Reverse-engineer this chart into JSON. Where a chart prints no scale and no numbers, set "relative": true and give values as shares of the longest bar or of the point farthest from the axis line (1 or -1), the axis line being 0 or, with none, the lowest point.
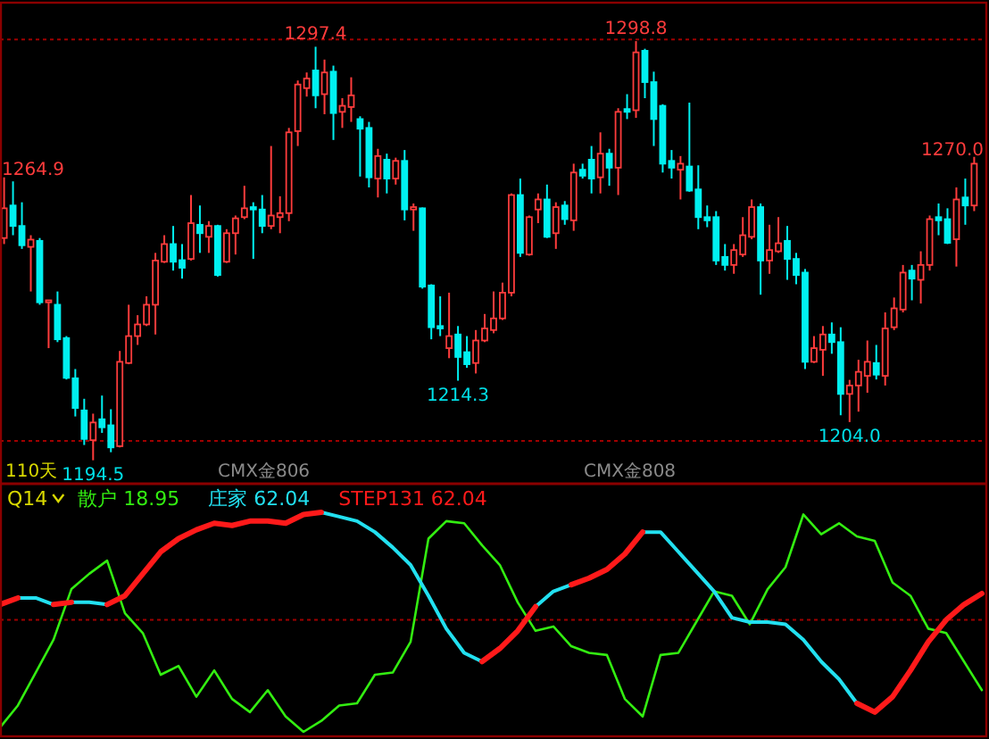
{
  "chart_data": [
    {
      "type": "candlestick",
      "categories": [
        null,
        null,
        null,
        null,
        null,
        null,
        null,
        null,
        null,
        null,
        null,
        null,
        null,
        null,
        null,
        null,
        null,
        null,
        null,
        null,
        null,
        null,
        null,
        null,
        null,
        null,
        null,
        null,
        null,
        null,
        null,
        null,
        null,
        null,
        null,
        null,
        null,
        null,
        null,
        null,
        null,
        null,
        null,
        null,
        null,
        null,
        null,
        null,
        null,
        null,
        null,
        null,
        null,
        null,
        null,
        null,
        null,
        null,
        null,
        null,
        null,
        null,
        null,
        null,
        null,
        null,
        null,
        null,
        null,
        null,
        null,
        null,
        null,
        null,
        null,
        null,
        null,
        null,
        null,
        null,
        null,
        null,
        null,
        null,
        null,
        null,
        null,
        null,
        null,
        null,
        null,
        null,
        null,
        null,
        null,
        null,
        null,
        null,
        null,
        null,
        null,
        null,
        null,
        null,
        null,
        null,
        null,
        null,
        null,
        null
      ],
      "colors": [
        "#ff3c3c",
        "#00f0f0",
        "#00f0f0",
        "#ff3c3c",
        "#00f0f0",
        "#ff3c3c",
        "#00f0f0",
        "#00f0f0",
        "#00f0f0",
        "#00f0f0",
        "#ff3c3c",
        "#00f0f0",
        "#00f0f0",
        "#ff3c3c",
        "#ff3c3c",
        "#ff3c3c",
        "#ff3c3c",
        "#ff3c3c",
        "#ff3c3c",
        "#00f0f0",
        "#00f0f0",
        "#ff3c3c",
        "#00f0f0",
        "#ff3c3c",
        "#00f0f0",
        "#ff3c3c",
        "#ff3c3c",
        "#ff3c3c",
        "#00f0f0",
        "#00f0f0",
        "#ff3c3c",
        "#ff3c3c",
        "#ff3c3c",
        "#ff3c3c",
        "#ff3c3c",
        "#00f0f0",
        "#ff3c3c",
        "#00f0f0",
        "#ff3c3c",
        "#ff3c3c",
        "#00f0f0",
        "#00f0f0",
        "#ff3c3c",
        "#00f0f0",
        "#ff3c3c",
        "#00f0f0",
        "#ff3c3c",
        "#00f0f0",
        "#00f0f0",
        "#00f0f0",
        "#ff3c3c",
        "#00f0f0",
        "#00f0f0",
        "#ff3c3c",
        "#ff3c3c",
        "#ff3c3c",
        "#ff3c3c",
        "#ff3c3c",
        "#00f0f0",
        "#ff3c3c",
        "#ff3c3c",
        "#00f0f0",
        "#ff3c3c",
        "#00f0f0",
        "#ff3c3c",
        "#00f0f0",
        "#00f0f0",
        "#ff3c3c",
        "#00f0f0",
        "#ff3c3c",
        "#00f0f0",
        "#ff3c3c",
        "#00f0f0",
        "#00f0f0",
        "#00f0f0",
        "#00f0f0",
        "#ff3c3c",
        "#00f0f0",
        "#00f0f0",
        "#00f0f0",
        "#00f0f0",
        "#00f0f0",
        "#ff3c3c",
        "#ff3c3c",
        "#ff3c3c",
        "#00f0f0",
        "#ff3c3c",
        "#ff3c3c",
        "#00f0f0",
        "#00f0f0",
        "#00f0f0",
        "#ff3c3c",
        "#ff3c3c",
        "#00f0f0",
        "#00f0f0",
        "#ff3c3c",
        "#ff3c3c",
        "#ff3c3c",
        "#00f0f0",
        "#ff3c3c",
        "#ff3c3c",
        "#ff3c3c",
        "#00f0f0",
        "#ff3c3c",
        "#ff3c3c",
        "#00f0f0",
        "#00f0f0",
        "#ff3c3c",
        "#00f0f0",
        "#ff3c3c"
      ],
      "ohlc": [
        [
          1249.8,
          1264.9,
          1248.3,
          1257.2
        ],
        [
          1257.9,
          1263.9,
          1250.5,
          1252.8
        ],
        [
          1252.8,
          1258.7,
          1247.1,
          1248.0
        ],
        [
          1247.6,
          1250.5,
          1236.5,
          1249.4
        ],
        [
          1249.1,
          1249.8,
          1233.2,
          1233.8
        ],
        [
          1233.8,
          1234.3,
          1222.4,
          1234.3
        ],
        [
          1233.2,
          1236.5,
          1223.9,
          1224.6
        ],
        [
          1224.9,
          1225.4,
          1214.6,
          1215.0
        ],
        [
          1214.9,
          1217.2,
          1205.4,
          1207.5
        ],
        [
          1206.9,
          1209.8,
          1198.3,
          1199.8
        ],
        [
          1199.5,
          1206.1,
          1194.5,
          1203.9
        ],
        [
          1204.7,
          1210.6,
          1201.3,
          1202.7
        ],
        [
          1203.2,
          1207.2,
          1196.5,
          1197.7
        ],
        [
          1198.0,
          1221.7,
          1197.7,
          1219.0
        ],
        [
          1218.7,
          1233.2,
          1218.4,
          1225.4
        ],
        [
          1225.4,
          1230.6,
          1223.2,
          1228.3
        ],
        [
          1228.3,
          1235.3,
          1227.9,
          1233.2
        ],
        [
          1233.2,
          1246.1,
          1225.8,
          1244.2
        ],
        [
          1243.9,
          1250.5,
          1243.6,
          1248.3
        ],
        [
          1248.3,
          1252.8,
          1241.7,
          1243.9
        ],
        [
          1244.3,
          1248.3,
          1239.7,
          1242.4
        ],
        [
          1244.6,
          1260.5,
          1244.2,
          1253.5
        ],
        [
          1253.1,
          1257.9,
          1246.1,
          1251.0
        ],
        [
          1250.1,
          1254.0,
          1246.1,
          1252.8
        ],
        [
          1252.8,
          1253.1,
          1240.2,
          1240.6
        ],
        [
          1243.9,
          1252.0,
          1243.6,
          1251.0
        ],
        [
          1251.0,
          1255.4,
          1245.7,
          1254.7
        ],
        [
          1255.0,
          1262.8,
          1254.5,
          1257.2
        ],
        [
          1257.5,
          1258.7,
          1244.6,
          1256.9
        ],
        [
          1256.9,
          1260.5,
          1251.0,
          1252.8
        ],
        [
          1252.8,
          1272.7,
          1252.0,
          1255.4
        ],
        [
          1255.0,
          1260.2,
          1251.0,
          1256.0
        ],
        [
          1256.0,
          1277.2,
          1254.0,
          1276.1
        ],
        [
          1276.4,
          1289.0,
          1272.7,
          1288.0
        ],
        [
          1287.1,
          1291.0,
          1285.0,
          1289.5
        ],
        [
          1291.5,
          1297.4,
          1282.1,
          1285.3
        ],
        [
          1285.6,
          1294.2,
          1280.6,
          1291.0
        ],
        [
          1291.2,
          1292.7,
          1274.2,
          1280.9
        ],
        [
          1281.2,
          1284.6,
          1277.2,
          1282.7
        ],
        [
          1282.4,
          1289.8,
          1278.7,
          1285.3
        ],
        [
          1279.4,
          1280.1,
          1265.1,
          1277.0
        ],
        [
          1277.2,
          1278.7,
          1262.4,
          1264.9
        ],
        [
          1264.6,
          1272.0,
          1259.9,
          1270.2
        ],
        [
          1269.3,
          1270.8,
          1260.9,
          1264.6
        ],
        [
          1264.6,
          1269.8,
          1263.1,
          1269.0
        ],
        [
          1269.0,
          1271.7,
          1254.2,
          1256.9
        ],
        [
          1256.9,
          1258.4,
          1251.6,
          1257.5
        ],
        [
          1257.2,
          1257.4,
          1237.2,
          1237.7
        ],
        [
          1238.0,
          1238.3,
          1224.6,
          1227.6
        ],
        [
          1227.9,
          1235.3,
          1225.4,
          1227.3
        ],
        [
          1222.4,
          1236.2,
          1219.9,
          1225.4
        ],
        [
          1225.8,
          1227.9,
          1214.3,
          1220.2
        ],
        [
          1221.4,
          1225.4,
          1217.5,
          1218.4
        ],
        [
          1218.7,
          1226.9,
          1216.1,
          1224.3
        ],
        [
          1224.3,
          1230.9,
          1223.9,
          1227.3
        ],
        [
          1226.9,
          1236.5,
          1226.1,
          1229.8
        ],
        [
          1229.8,
          1238.7,
          1229.4,
          1236.2
        ],
        [
          1236.2,
          1260.9,
          1235.3,
          1260.5
        ],
        [
          1260.5,
          1264.6,
          1245.1,
          1246.1
        ],
        [
          1245.7,
          1255.4,
          1245.4,
          1255.0
        ],
        [
          1256.9,
          1260.9,
          1253.5,
          1259.4
        ],
        [
          1259.4,
          1263.1,
          1249.8,
          1250.1
        ],
        [
          1251.0,
          1258.7,
          1247.1,
          1257.5
        ],
        [
          1257.9,
          1259.0,
          1253.1,
          1254.5
        ],
        [
          1254.2,
          1268.3,
          1251.6,
          1266.1
        ],
        [
          1266.8,
          1268.3,
          1264.6,
          1265.3
        ],
        [
          1269.3,
          1272.7,
          1260.9,
          1264.6
        ],
        [
          1264.9,
          1276.1,
          1260.9,
          1270.8
        ],
        [
          1270.8,
          1272.0,
          1262.8,
          1267.3
        ],
        [
          1267.3,
          1282.1,
          1260.5,
          1281.2
        ],
        [
          1281.9,
          1285.6,
          1279.4,
          1281.2
        ],
        [
          1281.6,
          1298.8,
          1279.7,
          1296.0
        ],
        [
          1296.4,
          1296.9,
          1284.6,
          1288.6
        ],
        [
          1288.6,
          1291.2,
          1272.7,
          1279.4
        ],
        [
          1282.7,
          1283.1,
          1266.1,
          1268.3
        ],
        [
          1269.0,
          1271.7,
          1264.6,
          1267.3
        ],
        [
          1266.8,
          1270.2,
          1259.4,
          1268.3
        ],
        [
          1267.6,
          1283.5,
          1261.3,
          1261.6
        ],
        [
          1261.9,
          1267.9,
          1252.0,
          1255.0
        ],
        [
          1255.0,
          1257.9,
          1252.5,
          1254.2
        ],
        [
          1255.0,
          1256.5,
          1243.1,
          1244.2
        ],
        [
          1245.1,
          1248.3,
          1241.7,
          1243.1
        ],
        [
          1243.1,
          1248.3,
          1240.9,
          1246.8
        ],
        [
          1245.7,
          1255.0,
          1245.1,
          1250.5
        ],
        [
          1250.1,
          1259.4,
          1249.5,
          1257.5
        ],
        [
          1257.5,
          1258.4,
          1235.7,
          1244.2
        ],
        [
          1244.2,
          1253.1,
          1240.9,
          1246.8
        ],
        [
          1246.5,
          1255.0,
          1246.1,
          1248.5
        ],
        [
          1249.1,
          1252.8,
          1239.4,
          1244.6
        ],
        [
          1244.6,
          1246.1,
          1238.3,
          1240.6
        ],
        [
          1241.2,
          1242.1,
          1217.2,
          1219.0
        ],
        [
          1219.0,
          1225.4,
          1218.7,
          1222.4
        ],
        [
          1222.0,
          1227.9,
          1215.5,
          1225.8
        ],
        [
          1225.8,
          1228.8,
          1221.0,
          1223.9
        ],
        [
          1223.9,
          1227.6,
          1205.7,
          1211.0
        ],
        [
          1211.0,
          1214.5,
          1204.0,
          1213.1
        ],
        [
          1213.1,
          1219.5,
          1206.6,
          1216.5
        ],
        [
          1215.5,
          1224.3,
          1211.3,
          1219.0
        ],
        [
          1218.7,
          1223.2,
          1214.6,
          1215.8
        ],
        [
          1215.5,
          1231.3,
          1213.1,
          1227.3
        ],
        [
          1227.6,
          1235.0,
          1226.9,
          1232.3
        ],
        [
          1232.0,
          1243.1,
          1231.3,
          1241.2
        ],
        [
          1241.7,
          1243.1,
          1234.3,
          1239.7
        ],
        [
          1239.4,
          1246.5,
          1233.5,
          1243.1
        ],
        [
          1243.1,
          1255.4,
          1241.7,
          1254.5
        ],
        [
          1255.0,
          1258.4,
          1250.5,
          1254.2
        ],
        [
          1254.5,
          1257.2,
          1248.3,
          1248.6
        ],
        [
          1249.5,
          1262.4,
          1242.7,
          1259.4
        ],
        [
          1259.9,
          1264.6,
          1253.1,
          1257.9
        ],
        [
          1257.9,
          1270.0,
          1256.5,
          1268.3
        ]
      ],
      "ylim": [
        1189.1,
        1307.7
      ],
      "ref_lines": [
        {
          "axis": "y",
          "value": 1299.2,
          "color": "#a00000",
          "line_style": "dotted"
        },
        {
          "axis": "y",
          "value": 1199.3,
          "color": "#a00000",
          "line_style": "dotted"
        }
      ],
      "annotations": [
        "110天",
        "CMX金806",
        "CMX金808",
        "1264.9",
        "1270.0",
        {
          "text": "1194.5",
          "y": 1194.5
        },
        {
          "text": "1297.4",
          "y": 1297.4
        },
        {
          "text": "1214.3",
          "y": 1214.3
        },
        {
          "text": "1298.8",
          "y": 1298.8
        },
        {
          "text": "1204.0",
          "y": 1204.0
        }
      ]
    },
    {
      "type": "line",
      "title": "Q14",
      "relative": true,
      "categories": [
        null,
        null,
        null,
        null,
        null,
        null,
        null,
        null,
        null,
        null,
        null,
        null,
        null,
        null,
        null,
        null,
        null,
        null,
        null,
        null,
        null,
        null,
        null,
        null,
        null,
        null,
        null,
        null,
        null,
        null,
        null,
        null,
        null,
        null,
        null,
        null,
        null,
        null,
        null,
        null,
        null,
        null,
        null,
        null,
        null,
        null,
        null,
        null,
        null,
        null,
        null,
        null,
        null,
        null,
        null,
        null
      ],
      "ref_lines": [
        {
          "axis": "y",
          "value": 0.51,
          "color": "#a00000",
          "line_style": "dotted"
        }
      ],
      "series": [
        {
          "name": "散户 18.95",
          "color": "#33ee11",
          "values": [
            0.02,
            0.12,
            0.27,
            0.42,
            0.65,
            0.72,
            0.78,
            0.54,
            0.45,
            0.26,
            0.3,
            0.16,
            0.28,
            0.15,
            0.09,
            0.19,
            0.07,
            0,
            0.05,
            0.12,
            0.13,
            0.26,
            0.27,
            0.41,
            0.88,
            0.96,
            0.95,
            0.85,
            0.76,
            0.59,
            0.46,
            0.48,
            0.39,
            0.36,
            0.35,
            0.15,
            0.07,
            0.35,
            0.36,
            0.5,
            0.64,
            0.62,
            0.49,
            0.65,
            0.75,
            0.99,
            0.9,
            0.95,
            0.89,
            0.87,
            0.68,
            0.62,
            0.47,
            0.45,
            0.32,
            0.19
          ]
        },
        {
          "name": "庄家 62.04",
          "color": "#22e0f0",
          "values": [
            null,
            0.61,
            0.61,
            0.58,
            0.59,
            0.59,
            0.58,
            null,
            null,
            null,
            null,
            null,
            null,
            null,
            null,
            null,
            null,
            null,
            1,
            0.98,
            0.96,
            0.91,
            0.84,
            0.76,
            0.62,
            0.47,
            0.36,
            0.32,
            null,
            null,
            0.57,
            0.64,
            0.67,
            null,
            null,
            null,
            0.91,
            0.91,
            0.82,
            0.73,
            0.64,
            0.52,
            0.5,
            0.5,
            0.49,
            0.42,
            0.32,
            0.24,
            0.13,
            null,
            null,
            null,
            null,
            null,
            null,
            null
          ]
        },
        {
          "name": "STEP131 62.04",
          "color": "#ff1a1a",
          "values": [
            0.58,
            0.61,
            null,
            0.58,
            0.59,
            null,
            0.58,
            0.62,
            0.72,
            0.82,
            0.88,
            0.92,
            0.95,
            0.94,
            0.96,
            0.96,
            0.95,
            0.99,
            1,
            null,
            null,
            null,
            null,
            null,
            null,
            null,
            null,
            0.32,
            0.38,
            0.46,
            0.57,
            null,
            0.67,
            0.7,
            0.74,
            0.81,
            0.91,
            null,
            null,
            null,
            null,
            null,
            null,
            null,
            null,
            null,
            null,
            null,
            0.13,
            0.09,
            0.16,
            0.28,
            0.41,
            0.51,
            0.58,
            0.63
          ]
        }
      ]
    }
  ]
}
